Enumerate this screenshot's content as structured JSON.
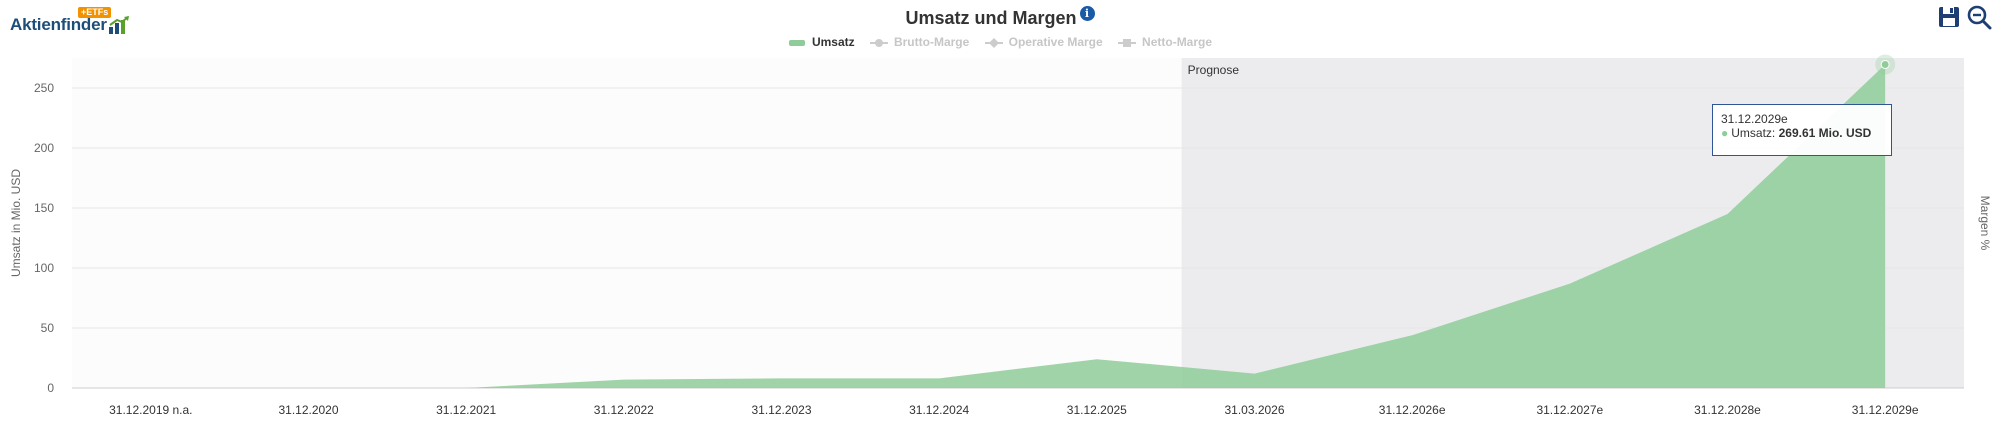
{
  "logo": {
    "text": "Aktienfinder",
    "badge": "+ETFs"
  },
  "title": "Umsatz und Margen",
  "info_icon": "info-icon",
  "toolbar": [
    {
      "name": "save-icon"
    },
    {
      "name": "zoom-out-icon"
    }
  ],
  "legend": [
    {
      "label": "Umsatz",
      "active": true,
      "color": "#8fcc99"
    },
    {
      "label": "Brutto-Marge",
      "active": false,
      "color": "#cccccc"
    },
    {
      "label": "Operative Marge",
      "active": false,
      "color": "#cccccc"
    },
    {
      "label": "Netto-Marge",
      "active": false,
      "color": "#cccccc"
    }
  ],
  "prognose_label": "Prognose",
  "tooltip": {
    "date": "31.12.2029e",
    "series": "Umsatz",
    "value": "269.61 Mio. USD"
  },
  "chart_data": {
    "type": "area",
    "categories": [
      "31.12.2019 n.a.",
      "31.12.2020",
      "31.12.2021",
      "31.12.2022",
      "31.12.2023",
      "31.12.2024",
      "31.12.2025",
      "31.03.2026",
      "31.12.2026e",
      "31.12.2027e",
      "31.12.2028e",
      "31.12.2029e"
    ],
    "series": [
      {
        "name": "Umsatz",
        "values": [
          0,
          0,
          0,
          7,
          8,
          8,
          24,
          12,
          44,
          87,
          145,
          269.61
        ],
        "color": "#8fcc99"
      }
    ],
    "ylabel": "Umsatz in Mio. USD",
    "y2label": "Margen %",
    "ylim": [
      0,
      275
    ],
    "yticks": [
      0,
      50,
      100,
      150,
      200,
      250
    ],
    "forecast_start_index": 7,
    "grid": true
  }
}
